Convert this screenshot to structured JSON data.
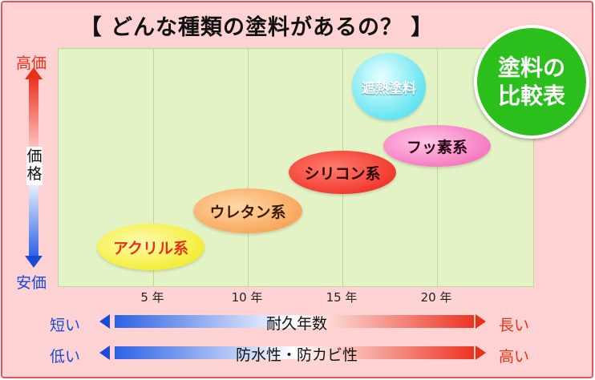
{
  "title": "【 どんな種類の塗料があるの？ 】",
  "badge": {
    "line1": "塗料の",
    "line2": "比較表"
  },
  "price_axis": {
    "label": "価格",
    "high": "高価",
    "low": "安価"
  },
  "durability_row": {
    "label": "耐久年数",
    "low": "短い",
    "high": "長い"
  },
  "waterproof_row": {
    "label": "防水性・防カビ性",
    "low": "低い",
    "high": "高い"
  },
  "colors": {
    "background": "#ffd3d3",
    "plot": "#e4f3c6",
    "badge": "#2bbf1c",
    "high": "#e8311a",
    "low": "#1a4ad8"
  },
  "chart_data": {
    "type": "scatter",
    "title": "【 どんな種類の塗料があるの？ 】",
    "xlabel": "耐久年数",
    "ylabel": "価格",
    "x_ticks": [
      "5 年",
      "10 年",
      "15 年",
      "20 年"
    ],
    "points": [
      {
        "name": "アクリル系",
        "durability_years": [
          3,
          8
        ],
        "price_level": "lowest"
      },
      {
        "name": "ウレタン系",
        "durability_years": [
          7,
          13
        ],
        "price_level": "low"
      },
      {
        "name": "シリコン系",
        "durability_years": [
          12,
          18
        ],
        "price_level": "mid"
      },
      {
        "name": "フッ素系",
        "durability_years": [
          17,
          22
        ],
        "price_level": "high"
      },
      {
        "name": "遮熱塗料",
        "durability_years": [
          17,
          21
        ],
        "price_level": "highest"
      }
    ],
    "grid": "vertical"
  }
}
